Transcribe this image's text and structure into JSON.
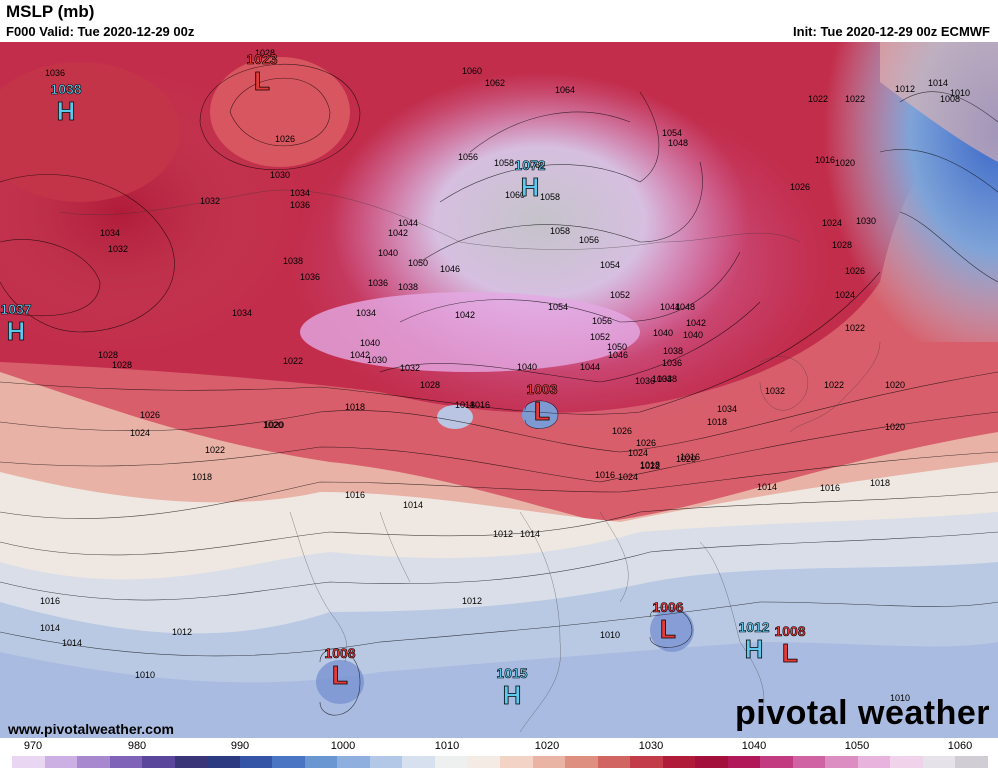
{
  "header": {
    "title": "MSLP (mb)",
    "valid": "F000 Valid: Tue 2020-12-29 00z",
    "init": "Init: Tue 2020-12-29 00z ECMWF"
  },
  "pressure_centers": [
    {
      "type": "H",
      "value": "1038",
      "color": "#5fc8ec"
    },
    {
      "type": "L",
      "value": "1023",
      "color": "#e43a3a"
    },
    {
      "type": "H",
      "value": "1037",
      "color": "#5fc8ec"
    },
    {
      "type": "H",
      "value": "1072",
      "color": "#5fc8ec"
    },
    {
      "type": "L",
      "value": "1003",
      "color": "#e43a3a"
    },
    {
      "type": "L",
      "value": "1006",
      "color": "#e43a3a"
    },
    {
      "type": "H",
      "value": "1012",
      "color": "#5fc8ec"
    },
    {
      "type": "L",
      "value": "1008",
      "color": "#e43a3a"
    },
    {
      "type": "L",
      "value": "1008",
      "color": "#e43a3a"
    },
    {
      "type": "H",
      "value": "1015",
      "color": "#5fc8ec"
    }
  ],
  "contour_labels": [
    "1036",
    "1028",
    "1026",
    "1030",
    "1034",
    "1036",
    "1032",
    "1034",
    "1032",
    "1038",
    "1036",
    "1034",
    "1060",
    "1062",
    "1064",
    "1056",
    "1058",
    "1060",
    "1054",
    "1048",
    "1022",
    "1020",
    "1016",
    "1014",
    "1012",
    "1010",
    "1022",
    "1026",
    "1024",
    "1044",
    "1042",
    "1040",
    "1050",
    "1046",
    "1038",
    "1036",
    "1034",
    "1042",
    "1058",
    "1054",
    "1056",
    "1052",
    "1050",
    "1046",
    "1044",
    "1040",
    "1038",
    "1036",
    "1034",
    "1040",
    "1042",
    "1040",
    "1030",
    "1032",
    "1028",
    "1022",
    "1020",
    "1018",
    "1028",
    "1028",
    "1026",
    "1024",
    "1022",
    "1020",
    "1018",
    "1016",
    "1018",
    "1016",
    "1014",
    "1016",
    "1018",
    "1012",
    "1014",
    "1012",
    "1010",
    "1016",
    "1014",
    "1014",
    "1012",
    "1010",
    "1010",
    "1010",
    "1008",
    "1022",
    "1020",
    "1024",
    "1026",
    "1026",
    "1024",
    "1022",
    "1020",
    "1018",
    "1016",
    "1014",
    "1016",
    "1018",
    "1020",
    "1022",
    "1024",
    "1026",
    "1028",
    "1030",
    "1032",
    "1034",
    "1036",
    "1038",
    "1040",
    "1042",
    "1044",
    "1048",
    "1052",
    "1054",
    "1056",
    "1058",
    "1060"
  ],
  "colorbar": {
    "ticks": [
      "970",
      "980",
      "990",
      "1000",
      "1010",
      "1020",
      "1030",
      "1040",
      "1050",
      "1060"
    ],
    "colors": [
      "#e8d6f2",
      "#cdb0e3",
      "#a889d0",
      "#7f63b8",
      "#5a469a",
      "#3a3478",
      "#2c3a82",
      "#3454a6",
      "#4a75c2",
      "#6a96d2",
      "#8fb0de",
      "#b3c7e6",
      "#d6e0ee",
      "#eef0f0",
      "#f4ebe4",
      "#f2d3c6",
      "#eab4a5",
      "#df8f80",
      "#d16562",
      "#c33c4a",
      "#b01b3a",
      "#a4103c",
      "#b0185a",
      "#c23a80",
      "#d063a3",
      "#dc8ec3",
      "#e8b3dc",
      "#f0d3ea",
      "#e6e2ea",
      "#d0ced4"
    ]
  },
  "website": "www.pivotalweather.com",
  "brand": "pivotal weather"
}
